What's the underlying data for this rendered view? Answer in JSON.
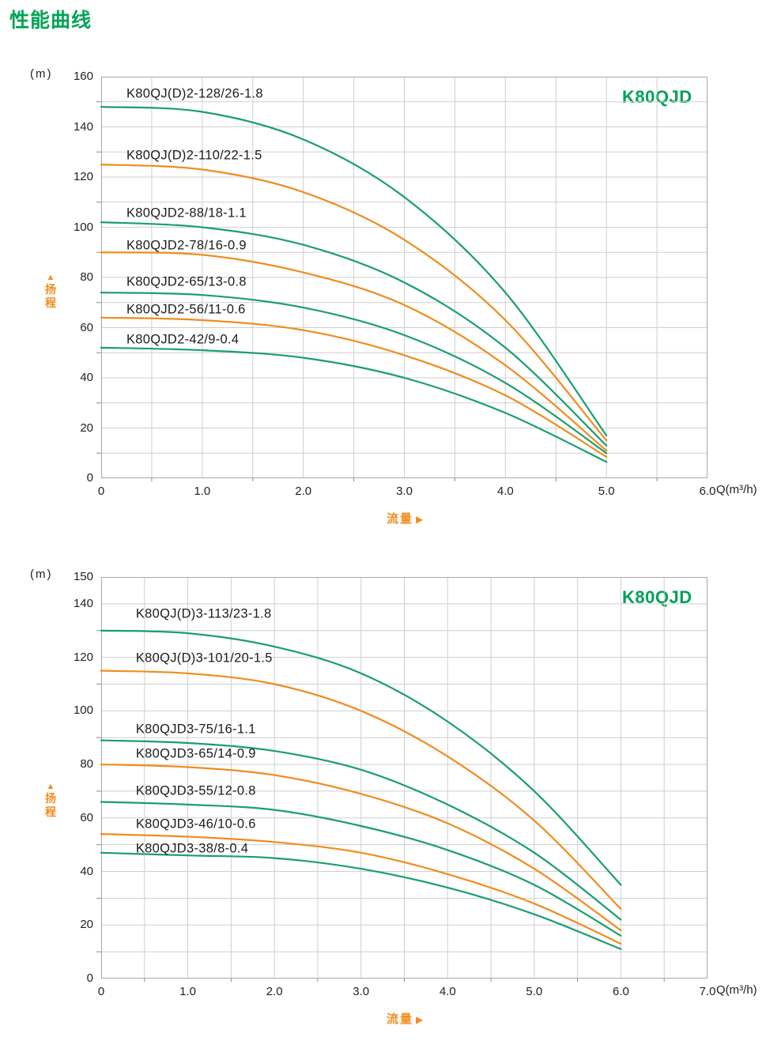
{
  "page": {
    "title": "性能曲线"
  },
  "icons": {
    "up_arrow": "▲",
    "right_arrow": "▶"
  },
  "colors": {
    "title_green": "#00A455",
    "chart_title_green": "#00A05A",
    "curve_green": "#1A9E71",
    "curve_orange": "#F08C1E",
    "orange_axis_label": "#F28C1D",
    "axis_text": "#222222",
    "curve_label_text": "#1C1C1C",
    "grid": "#CFCFCF",
    "plot_border": "#A8A8A8",
    "minor_tick": "#8A8A8A"
  },
  "chart_data": [
    {
      "type": "line",
      "title": "K80QJD",
      "y_axis_unit": "(m)",
      "ylabel": "扬程",
      "xlabel": "流量",
      "x_unit": "Q(m³/h)",
      "xlim": [
        0,
        6
      ],
      "ylim": [
        0,
        160
      ],
      "x_ticks": [
        "0",
        "1.0",
        "2.0",
        "3.0",
        "4.0",
        "5.0",
        "6.0"
      ],
      "y_ticks": [
        "0",
        "20",
        "40",
        "60",
        "80",
        "100",
        "120",
        "140",
        "160"
      ],
      "grid_step_x": 0.5,
      "grid_step_y": 10,
      "grid": true,
      "legend_position": "labels-on-curves",
      "series": [
        {
          "name": "K80QJ(D)2-128/26-1.8",
          "color": "green",
          "x": [
            0,
            1,
            2,
            3,
            4,
            5
          ],
          "y": [
            148,
            146,
            135,
            112,
            74,
            17
          ],
          "label_x": 0.25,
          "label_y": 153
        },
        {
          "name": "K80QJ(D)2-110/22-1.5",
          "color": "orange",
          "x": [
            0,
            1,
            2,
            3,
            4,
            5
          ],
          "y": [
            125,
            123,
            114,
            95,
            63,
            15
          ],
          "label_x": 0.25,
          "label_y": 128.5
        },
        {
          "name": "K80QJD2-88/18-1.1",
          "color": "green",
          "x": [
            0,
            1,
            2,
            3,
            4,
            5
          ],
          "y": [
            102,
            100,
            93,
            78,
            52,
            13
          ],
          "label_x": 0.25,
          "label_y": 105.5
        },
        {
          "name": "K80QJD2-78/16-0.9",
          "color": "orange",
          "x": [
            0,
            1,
            2,
            3,
            4,
            5
          ],
          "y": [
            90,
            89,
            82,
            69,
            45,
            11
          ],
          "label_x": 0.25,
          "label_y": 92.5
        },
        {
          "name": "K80QJD2-65/13-0.8",
          "color": "green",
          "x": [
            0,
            1,
            2,
            3,
            4,
            5
          ],
          "y": [
            74,
            73,
            68,
            57,
            38,
            10
          ],
          "label_x": 0.25,
          "label_y": 78
        },
        {
          "name": "K80QJD2-56/11-0.6",
          "color": "orange",
          "x": [
            0,
            1,
            2,
            3,
            4,
            5
          ],
          "y": [
            64,
            63,
            59,
            49,
            33,
            8.5
          ],
          "label_x": 0.25,
          "label_y": 67
        },
        {
          "name": "K80QJD2-42/9-0.4",
          "color": "green",
          "x": [
            0,
            1,
            2,
            3,
            4,
            5
          ],
          "y": [
            52,
            51,
            48,
            40,
            26,
            6.5
          ],
          "label_x": 0.25,
          "label_y": 55
        }
      ]
    },
    {
      "type": "line",
      "title": "K80QJD",
      "y_axis_unit": "(m)",
      "ylabel": "扬程",
      "xlabel": "流量",
      "x_unit": "Q(m³/h)",
      "xlim": [
        0,
        7
      ],
      "ylim": [
        0,
        150
      ],
      "x_ticks": [
        "0",
        "1.0",
        "2.0",
        "3.0",
        "4.0",
        "5.0",
        "6.0",
        "7.0"
      ],
      "y_ticks": [
        "0",
        "20",
        "40",
        "60",
        "80",
        "100",
        "120",
        "140",
        "150"
      ],
      "grid_step_x": 0.5,
      "grid_step_y": 10,
      "grid": true,
      "legend_position": "labels-on-curves",
      "series": [
        {
          "name": "K80QJ(D)3-113/23-1.8",
          "color": "green",
          "x": [
            0,
            1,
            2,
            3,
            4,
            5,
            6
          ],
          "y": [
            130,
            129,
            124,
            114,
            96,
            70,
            35
          ],
          "label_x": 0.4,
          "label_y": 136
        },
        {
          "name": "K80QJ(D)3-101/20-1.5",
          "color": "orange",
          "x": [
            0,
            1,
            2,
            3,
            4,
            5,
            6
          ],
          "y": [
            115,
            114,
            110,
            100,
            83,
            59,
            26
          ],
          "label_x": 0.4,
          "label_y": 119.5
        },
        {
          "name": "K80QJD3-75/16-1.1",
          "color": "green",
          "x": [
            0,
            1,
            2,
            3,
            4,
            5,
            6
          ],
          "y": [
            89,
            88,
            85,
            78,
            65,
            47,
            22
          ],
          "label_x": 0.4,
          "label_y": 93
        },
        {
          "name": "K80QJD3-65/14-0.9",
          "color": "orange",
          "x": [
            0,
            1,
            2,
            3,
            4,
            5,
            6
          ],
          "y": [
            80,
            79,
            76,
            69,
            58,
            41,
            18
          ],
          "label_x": 0.4,
          "label_y": 84
        },
        {
          "name": "K80QJD3-55/12-0.8",
          "color": "green",
          "x": [
            0,
            1,
            2,
            3,
            4,
            5,
            6
          ],
          "y": [
            66,
            65,
            63,
            57,
            48,
            35,
            16
          ],
          "label_x": 0.4,
          "label_y": 70
        },
        {
          "name": "K80QJD3-46/10-0.6",
          "color": "orange",
          "x": [
            0,
            1,
            2,
            3,
            4,
            5,
            6
          ],
          "y": [
            54,
            53,
            51,
            47,
            39,
            28,
            13
          ],
          "label_x": 0.4,
          "label_y": 57.5
        },
        {
          "name": "K80QJD3-38/8-0.4",
          "color": "green",
          "x": [
            0,
            1,
            2,
            3,
            4,
            5,
            6
          ],
          "y": [
            47,
            46,
            45,
            41,
            34,
            24,
            11
          ],
          "label_x": 0.4,
          "label_y": 48.5
        }
      ]
    }
  ]
}
